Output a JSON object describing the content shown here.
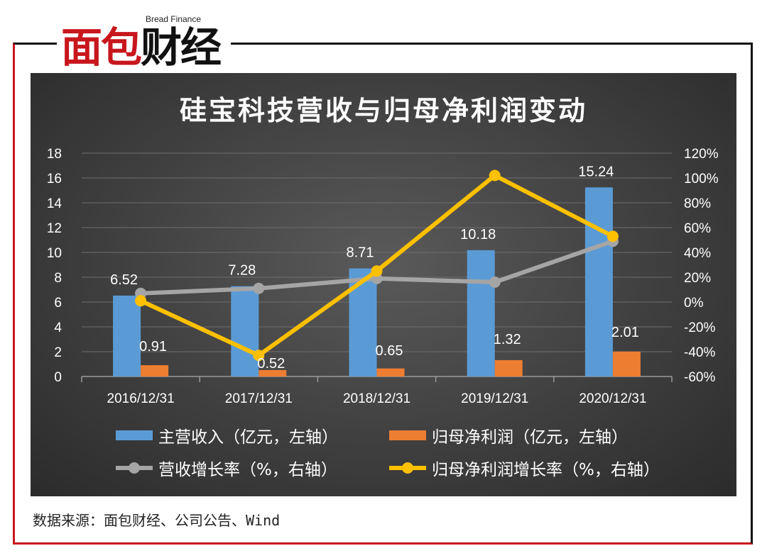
{
  "logo": {
    "en": "Bread Finance",
    "cn_red": "面包",
    "cn_black": "财经"
  },
  "source": "数据来源：面包财经、公司公告、Wind",
  "chart_data": {
    "type": "bar",
    "title": "硅宝科技营收与归母净利润变动",
    "categories": [
      "2016/12/31",
      "2017/12/31",
      "2018/12/31",
      "2019/12/31",
      "2020/12/31"
    ],
    "left_axis": {
      "min": 0,
      "max": 18,
      "step": 2,
      "ticks": [
        "0",
        "2",
        "4",
        "6",
        "8",
        "10",
        "12",
        "14",
        "16",
        "18"
      ]
    },
    "right_axis": {
      "min": -60,
      "max": 120,
      "step": 20,
      "ticks": [
        "-60%",
        "-40%",
        "-20%",
        "0%",
        "20%",
        "40%",
        "60%",
        "80%",
        "100%",
        "120%"
      ]
    },
    "grid": true,
    "legend_position": "bottom",
    "series": [
      {
        "name": "主营收入（亿元，左轴）",
        "kind": "bar",
        "axis": "left",
        "color": "#5b9bd5",
        "values": [
          6.52,
          7.28,
          8.71,
          10.18,
          15.24
        ],
        "labels": [
          "6.52",
          "7.28",
          "8.71",
          "10.18",
          "15.24"
        ]
      },
      {
        "name": "归母净利润（亿元，左轴）",
        "kind": "bar",
        "axis": "left",
        "color": "#ed7d31",
        "values": [
          0.91,
          0.52,
          0.65,
          1.32,
          2.01
        ],
        "labels": [
          "0.91",
          "0.52",
          "0.65",
          "1.32",
          "2.01"
        ]
      },
      {
        "name": "营收增长率（%，右轴）",
        "kind": "line",
        "axis": "right",
        "color": "#a5a5a5",
        "values": [
          7,
          11,
          19,
          16,
          49
        ]
      },
      {
        "name": "归母净利润增长率（%，右轴）",
        "kind": "line",
        "axis": "right",
        "color": "#ffc000",
        "values": [
          1,
          -43,
          25,
          102,
          53
        ]
      }
    ]
  }
}
